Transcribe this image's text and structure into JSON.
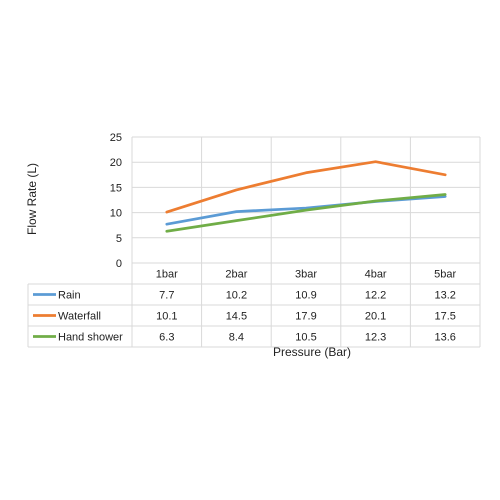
{
  "chart_data": {
    "type": "line",
    "xlabel": "Pressure (Bar)",
    "ylabel": "Flow Rate (L)",
    "categories": [
      "1bar",
      "2bar",
      "3bar",
      "4bar",
      "5bar"
    ],
    "ylim": [
      0,
      25
    ],
    "yticks": [
      0,
      5,
      10,
      15,
      20,
      25
    ],
    "grid": true,
    "legend": "data-table",
    "series": [
      {
        "name": "Rain",
        "color": "#5b9bd5",
        "values": [
          7.7,
          10.2,
          10.9,
          12.2,
          13.2
        ]
      },
      {
        "name": "Waterfall",
        "color": "#ed7d31",
        "values": [
          10.1,
          14.5,
          17.9,
          20.1,
          17.5
        ]
      },
      {
        "name": "Hand shower",
        "color": "#70ad47",
        "values": [
          6.3,
          8.4,
          10.5,
          12.3,
          13.6
        ]
      }
    ]
  }
}
